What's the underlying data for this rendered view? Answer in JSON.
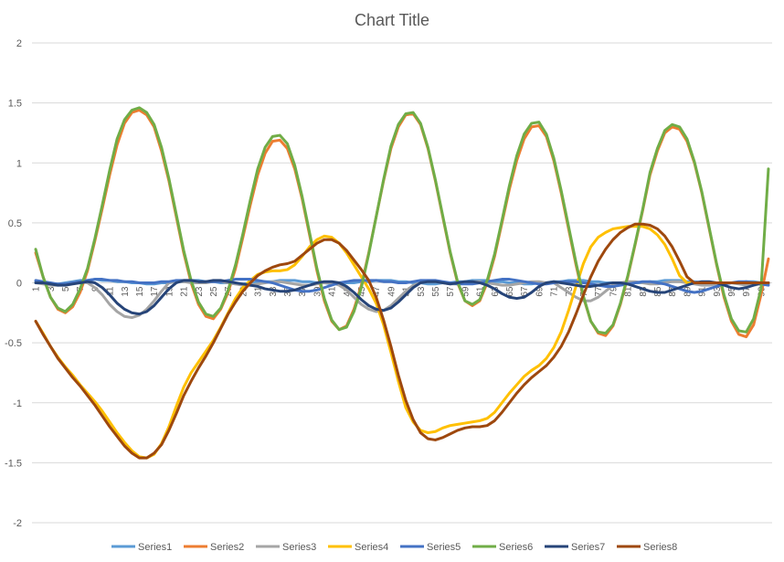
{
  "chart_data": {
    "type": "line",
    "title": "Chart Title",
    "xlabel": "",
    "ylabel": "",
    "ylim": [
      -2,
      2
    ],
    "yticks": [
      2,
      1.5,
      1,
      0.5,
      0,
      -0.5,
      -1,
      -1.5,
      -2
    ],
    "x": [
      1,
      2,
      3,
      4,
      5,
      6,
      7,
      8,
      9,
      10,
      11,
      12,
      13,
      14,
      15,
      16,
      17,
      18,
      19,
      20,
      21,
      22,
      23,
      24,
      25,
      26,
      27,
      28,
      29,
      30,
      31,
      32,
      33,
      34,
      35,
      36,
      37,
      38,
      39,
      40,
      41,
      42,
      43,
      44,
      45,
      46,
      47,
      48,
      49,
      50,
      51,
      52,
      53,
      54,
      55,
      56,
      57,
      58,
      59,
      60,
      61,
      62,
      63,
      64,
      65,
      66,
      67,
      68,
      69,
      70,
      71,
      72,
      73,
      74,
      75,
      76,
      77,
      78,
      79,
      80,
      81,
      82,
      83,
      84,
      85,
      86,
      87,
      88,
      89,
      90,
      91,
      92,
      93,
      94,
      95,
      96,
      97,
      98,
      99,
      100
    ],
    "xtick_labels": [
      "1",
      "3",
      "5",
      "7",
      "9",
      "11",
      "13",
      "15",
      "17",
      "19",
      "21",
      "23",
      "25",
      "27",
      "29",
      "31",
      "33",
      "35",
      "37",
      "39",
      "41",
      "43",
      "45",
      "47",
      "49",
      "51",
      "53",
      "55",
      "57",
      "59",
      "61",
      "63",
      "65",
      "67",
      "69",
      "71",
      "73",
      "75",
      "77",
      "79",
      "81",
      "83",
      "85",
      "87",
      "89",
      "91",
      "93",
      "95",
      "97",
      "99"
    ],
    "grid": true,
    "legend": "bottom",
    "series": [
      {
        "name": "Series1",
        "color": "#5b9bd5",
        "values": [
          0.01,
          0.0,
          -0.01,
          -0.01,
          0.0,
          0.01,
          0.02,
          0.02,
          0.03,
          0.02,
          0.02,
          0.01,
          0.01,
          0.0,
          0.0,
          -0.01,
          -0.01,
          0.0,
          0.0,
          0.01,
          0.01,
          0.02,
          0.02,
          0.01,
          0.01,
          0.0,
          0.0,
          -0.01,
          -0.01,
          0.0,
          0.0,
          0.01,
          0.01,
          0.02,
          0.02,
          0.02,
          0.01,
          0.01,
          0.0,
          0.0,
          -0.01,
          -0.01,
          0.0,
          0.0,
          0.01,
          0.01,
          0.02,
          0.02,
          0.02,
          0.01,
          0.01,
          0.0,
          0.0,
          -0.01,
          -0.01,
          0.0,
          0.0,
          0.01,
          0.01,
          0.02,
          0.02,
          0.02,
          0.01,
          0.01,
          0.0,
          0.0,
          -0.01,
          -0.01,
          0.0,
          0.0,
          0.01,
          0.01,
          0.02,
          0.02,
          0.02,
          0.01,
          0.01,
          0.0,
          0.0,
          -0.01,
          -0.01,
          0.0,
          0.0,
          0.01,
          0.01,
          0.02,
          0.02,
          0.02,
          0.01,
          0.01,
          0.0,
          0.0,
          -0.01,
          -0.01,
          0.0,
          0.0,
          0.01,
          0.01,
          0.0,
          -0.01
        ]
      },
      {
        "name": "Series2",
        "color": "#ed7d31",
        "values": [
          0.25,
          0.05,
          -0.12,
          -0.22,
          -0.25,
          -0.2,
          -0.08,
          0.1,
          0.35,
          0.62,
          0.9,
          1.15,
          1.33,
          1.42,
          1.44,
          1.4,
          1.3,
          1.1,
          0.85,
          0.55,
          0.25,
          0.0,
          -0.18,
          -0.28,
          -0.3,
          -0.22,
          -0.08,
          0.12,
          0.38,
          0.65,
          0.9,
          1.08,
          1.18,
          1.19,
          1.12,
          0.95,
          0.7,
          0.4,
          0.1,
          -0.15,
          -0.32,
          -0.39,
          -0.36,
          -0.22,
          -0.02,
          0.25,
          0.55,
          0.85,
          1.12,
          1.3,
          1.4,
          1.41,
          1.32,
          1.12,
          0.85,
          0.55,
          0.25,
          0.0,
          -0.15,
          -0.19,
          -0.15,
          0.0,
          0.22,
          0.5,
          0.78,
          1.02,
          1.2,
          1.3,
          1.31,
          1.22,
          1.02,
          0.75,
          0.45,
          0.15,
          -0.12,
          -0.32,
          -0.42,
          -0.44,
          -0.36,
          -0.18,
          0.05,
          0.32,
          0.6,
          0.9,
          1.1,
          1.25,
          1.3,
          1.28,
          1.18,
          1.0,
          0.75,
          0.45,
          0.15,
          -0.12,
          -0.32,
          -0.43,
          -0.45,
          -0.35,
          -0.1,
          0.2
        ]
      },
      {
        "name": "Series3",
        "color": "#a5a5a5",
        "values": [
          0.0,
          -0.01,
          -0.02,
          -0.02,
          -0.01,
          0.0,
          0.01,
          0.0,
          -0.04,
          -0.1,
          -0.18,
          -0.24,
          -0.28,
          -0.29,
          -0.27,
          -0.22,
          -0.15,
          -0.07,
          0.0,
          0.01,
          0.01,
          0.0,
          0.0,
          0.0,
          0.01,
          0.01,
          0.0,
          -0.01,
          -0.02,
          -0.02,
          -0.01,
          0.0,
          0.01,
          0.01,
          0.0,
          -0.01,
          -0.02,
          -0.02,
          -0.01,
          0.0,
          0.0,
          -0.02,
          -0.06,
          -0.12,
          -0.18,
          -0.22,
          -0.24,
          -0.23,
          -0.19,
          -0.13,
          -0.07,
          -0.02,
          0.0,
          0.01,
          0.01,
          0.0,
          -0.01,
          -0.01,
          0.0,
          0.01,
          0.01,
          0.0,
          -0.01,
          -0.02,
          -0.02,
          -0.01,
          0.0,
          0.01,
          0.01,
          0.0,
          0.0,
          -0.04,
          -0.08,
          -0.12,
          -0.15,
          -0.15,
          -0.12,
          -0.07,
          -0.02,
          0.0,
          0.01,
          0.01,
          0.0,
          -0.01,
          -0.01,
          0.0,
          0.01,
          0.01,
          0.0,
          -0.01,
          -0.02,
          -0.02,
          -0.01,
          0.0,
          0.0,
          -0.01,
          -0.02,
          -0.02,
          -0.01,
          0.0
        ]
      },
      {
        "name": "Series4",
        "color": "#ffc000",
        "values": [
          -0.32,
          -0.42,
          -0.53,
          -0.62,
          -0.7,
          -0.77,
          -0.85,
          -0.92,
          -0.99,
          -1.07,
          -1.16,
          -1.25,
          -1.33,
          -1.4,
          -1.45,
          -1.46,
          -1.43,
          -1.34,
          -1.2,
          -1.03,
          -0.87,
          -0.75,
          -0.66,
          -0.57,
          -0.48,
          -0.37,
          -0.25,
          -0.13,
          -0.04,
          0.02,
          0.07,
          0.09,
          0.1,
          0.1,
          0.11,
          0.15,
          0.22,
          0.3,
          0.36,
          0.39,
          0.38,
          0.33,
          0.25,
          0.15,
          0.05,
          -0.05,
          -0.17,
          -0.35,
          -0.58,
          -0.82,
          -1.04,
          -1.16,
          -1.23,
          -1.25,
          -1.24,
          -1.21,
          -1.19,
          -1.18,
          -1.17,
          -1.16,
          -1.15,
          -1.13,
          -1.08,
          -1.0,
          -0.92,
          -0.85,
          -0.78,
          -0.73,
          -0.69,
          -0.63,
          -0.54,
          -0.41,
          -0.23,
          -0.03,
          0.16,
          0.3,
          0.38,
          0.42,
          0.45,
          0.46,
          0.47,
          0.47,
          0.47,
          0.45,
          0.4,
          0.32,
          0.2,
          0.06,
          0.0,
          0.0,
          0.0,
          0.0,
          0.0,
          0.0,
          0.0,
          0.0,
          0.0,
          0.0,
          0.0,
          0.0
        ]
      },
      {
        "name": "Series5",
        "color": "#4472c4",
        "values": [
          0.02,
          0.01,
          0.0,
          -0.01,
          -0.01,
          0.0,
          0.01,
          0.02,
          0.03,
          0.03,
          0.02,
          0.02,
          0.01,
          0.01,
          0.0,
          0.0,
          0.0,
          0.01,
          0.01,
          0.02,
          0.02,
          0.02,
          0.01,
          0.01,
          0.01,
          0.01,
          0.02,
          0.03,
          0.03,
          0.03,
          0.02,
          0.01,
          0.0,
          -0.02,
          -0.04,
          -0.06,
          -0.07,
          -0.07,
          -0.06,
          -0.04,
          -0.02,
          0.0,
          0.01,
          0.02,
          0.02,
          0.02,
          0.02,
          0.01,
          0.01,
          0.0,
          0.0,
          0.01,
          0.02,
          0.02,
          0.02,
          0.01,
          0.0,
          -0.01,
          -0.01,
          -0.01,
          0.0,
          0.01,
          0.02,
          0.03,
          0.03,
          0.02,
          0.01,
          0.0,
          -0.01,
          -0.01,
          0.0,
          0.01,
          0.01,
          0.01,
          0.0,
          -0.01,
          -0.02,
          -0.03,
          -0.03,
          -0.02,
          -0.01,
          0.0,
          0.01,
          0.01,
          0.0,
          -0.01,
          -0.03,
          -0.05,
          -0.07,
          -0.08,
          -0.07,
          -0.05,
          -0.03,
          -0.01,
          0.0,
          0.01,
          0.01,
          0.0,
          -0.01,
          -0.02
        ]
      },
      {
        "name": "Series6",
        "color": "#70ad47",
        "values": [
          0.28,
          0.05,
          -0.12,
          -0.21,
          -0.24,
          -0.18,
          -0.05,
          0.12,
          0.37,
          0.65,
          0.94,
          1.2,
          1.36,
          1.44,
          1.46,
          1.42,
          1.32,
          1.13,
          0.87,
          0.57,
          0.27,
          0.02,
          -0.16,
          -0.26,
          -0.28,
          -0.21,
          -0.06,
          0.15,
          0.41,
          0.69,
          0.95,
          1.13,
          1.22,
          1.23,
          1.16,
          0.98,
          0.72,
          0.42,
          0.12,
          -0.13,
          -0.31,
          -0.39,
          -0.37,
          -0.24,
          -0.04,
          0.24,
          0.55,
          0.86,
          1.14,
          1.32,
          1.41,
          1.42,
          1.33,
          1.13,
          0.86,
          0.56,
          0.26,
          0.01,
          -0.15,
          -0.18,
          -0.14,
          0.02,
          0.24,
          0.52,
          0.81,
          1.06,
          1.24,
          1.33,
          1.34,
          1.24,
          1.04,
          0.77,
          0.47,
          0.17,
          -0.11,
          -0.32,
          -0.41,
          -0.42,
          -0.35,
          -0.17,
          0.06,
          0.33,
          0.61,
          0.92,
          1.12,
          1.27,
          1.32,
          1.3,
          1.2,
          1.01,
          0.76,
          0.46,
          0.16,
          -0.1,
          -0.3,
          -0.4,
          -0.41,
          -0.3,
          -0.05,
          0.95
        ]
      },
      {
        "name": "Series7",
        "color": "#264478",
        "values": [
          0.0,
          0.0,
          -0.01,
          -0.02,
          -0.02,
          -0.01,
          0.0,
          0.01,
          0.0,
          -0.04,
          -0.1,
          -0.17,
          -0.22,
          -0.25,
          -0.26,
          -0.24,
          -0.19,
          -0.12,
          -0.05,
          0.0,
          0.02,
          0.02,
          0.01,
          0.01,
          0.02,
          0.02,
          0.01,
          0.0,
          -0.01,
          -0.02,
          -0.03,
          -0.05,
          -0.06,
          -0.07,
          -0.07,
          -0.06,
          -0.04,
          -0.02,
          0.0,
          0.01,
          0.01,
          0.0,
          -0.03,
          -0.08,
          -0.14,
          -0.19,
          -0.22,
          -0.23,
          -0.21,
          -0.16,
          -0.1,
          -0.04,
          0.0,
          0.01,
          0.01,
          0.0,
          -0.01,
          0.0,
          0.01,
          0.01,
          0.0,
          -0.02,
          -0.05,
          -0.09,
          -0.12,
          -0.13,
          -0.12,
          -0.08,
          -0.03,
          0.0,
          0.01,
          0.0,
          -0.01,
          -0.02,
          -0.03,
          -0.03,
          -0.02,
          -0.01,
          0.0,
          0.0,
          -0.01,
          -0.03,
          -0.05,
          -0.07,
          -0.08,
          -0.08,
          -0.06,
          -0.04,
          -0.02,
          0.0,
          0.01,
          0.01,
          0.0,
          -0.02,
          -0.04,
          -0.05,
          -0.04,
          -0.02,
          0.0,
          0.0
        ]
      },
      {
        "name": "Series8",
        "color": "#9e480e",
        "values": [
          -0.32,
          -0.43,
          -0.53,
          -0.63,
          -0.71,
          -0.79,
          -0.86,
          -0.94,
          -1.02,
          -1.11,
          -1.2,
          -1.28,
          -1.36,
          -1.42,
          -1.46,
          -1.46,
          -1.42,
          -1.35,
          -1.23,
          -1.09,
          -0.94,
          -0.82,
          -0.71,
          -0.61,
          -0.5,
          -0.38,
          -0.26,
          -0.16,
          -0.07,
          0.0,
          0.06,
          0.1,
          0.13,
          0.15,
          0.16,
          0.18,
          0.23,
          0.28,
          0.33,
          0.36,
          0.36,
          0.33,
          0.27,
          0.19,
          0.11,
          0.02,
          -0.12,
          -0.31,
          -0.53,
          -0.77,
          -0.98,
          -1.14,
          -1.25,
          -1.3,
          -1.31,
          -1.29,
          -1.26,
          -1.23,
          -1.21,
          -1.2,
          -1.2,
          -1.19,
          -1.15,
          -1.08,
          -1.0,
          -0.92,
          -0.85,
          -0.79,
          -0.74,
          -0.69,
          -0.62,
          -0.53,
          -0.41,
          -0.26,
          -0.1,
          0.05,
          0.18,
          0.28,
          0.36,
          0.42,
          0.46,
          0.49,
          0.49,
          0.48,
          0.45,
          0.39,
          0.3,
          0.18,
          0.05,
          0.0,
          0.0,
          0.0,
          0.0,
          0.0,
          0.0,
          0.0,
          0.0,
          0.0,
          0.0,
          0.0
        ]
      }
    ]
  }
}
